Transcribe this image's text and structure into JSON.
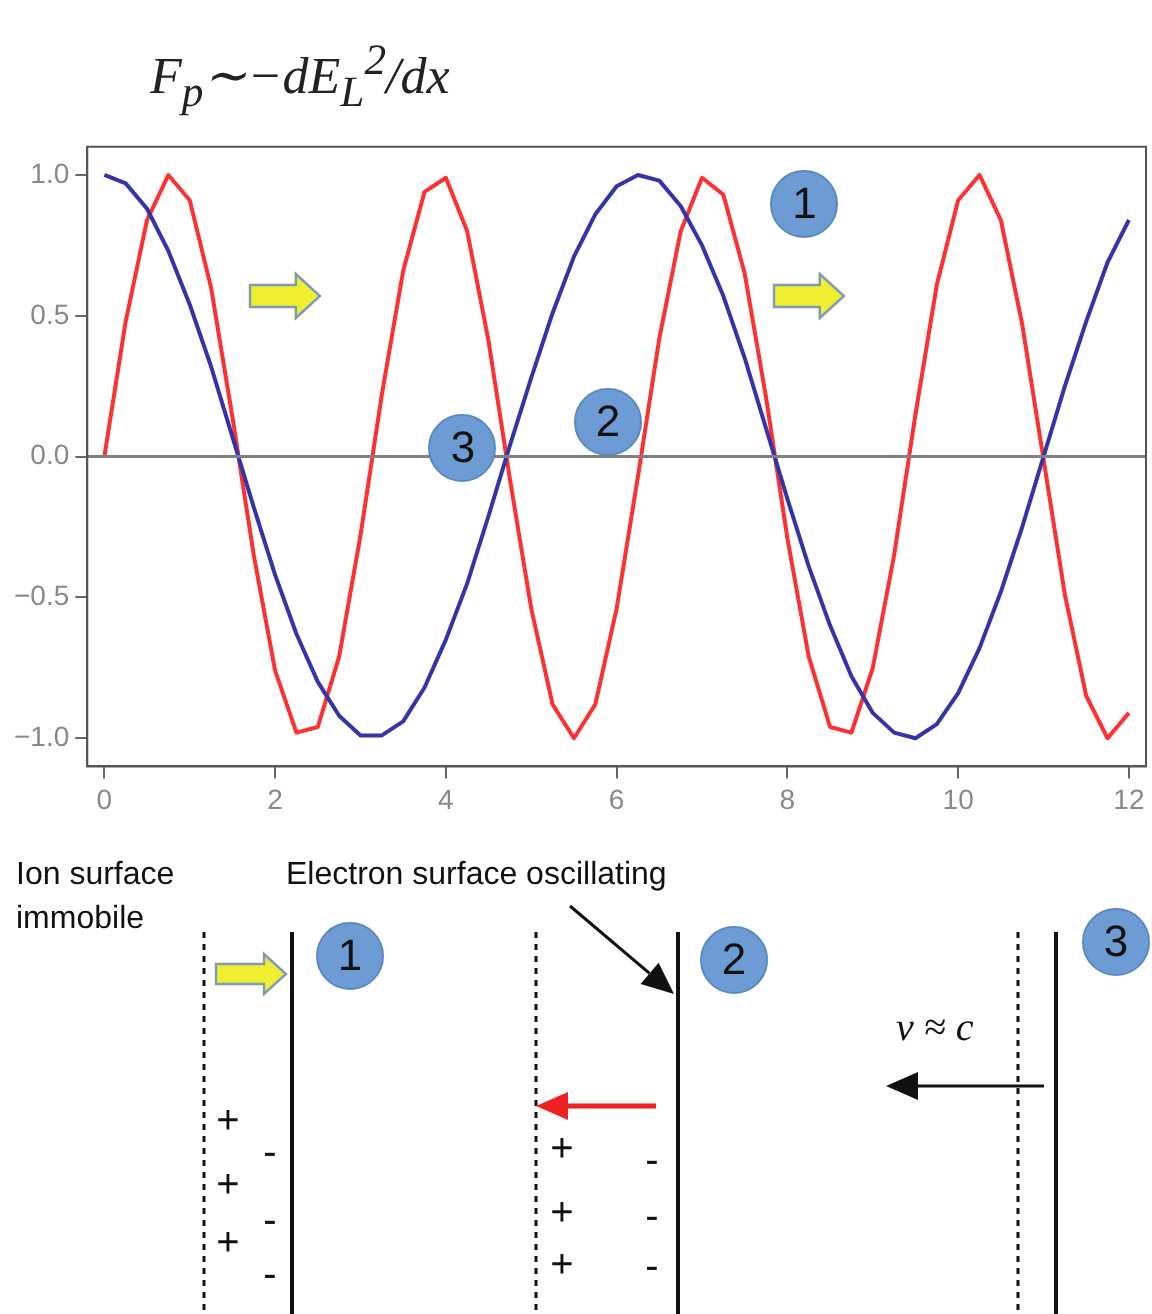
{
  "chart_data": {
    "type": "line",
    "title": "F$_{p}$∼−dE$_{L}$$^{2}$/dx",
    "x": [
      0,
      0.25,
      0.5,
      0.75,
      1,
      1.25,
      1.5,
      1.75,
      2,
      2.25,
      2.5,
      2.75,
      3,
      3.25,
      3.5,
      3.75,
      4,
      4.25,
      4.5,
      4.75,
      5,
      5.25,
      5.5,
      5.75,
      6,
      6.25,
      6.5,
      6.75,
      7,
      7.25,
      7.5,
      7.75,
      8,
      8.25,
      8.5,
      8.75,
      9,
      9.25,
      9.5,
      9.75,
      10,
      10.25,
      10.5,
      10.75,
      11,
      11.25,
      11.5,
      11.75,
      12
    ],
    "series": [
      {
        "color": "#3333aa",
        "values": [
          1.0,
          0.97,
          0.88,
          0.73,
          0.54,
          0.32,
          0.07,
          -0.18,
          -0.42,
          -0.63,
          -0.8,
          -0.92,
          -0.99,
          -0.99,
          -0.94,
          -0.82,
          -0.65,
          -0.45,
          -0.21,
          0.04,
          0.28,
          0.51,
          0.71,
          0.86,
          0.96,
          1.0,
          0.98,
          0.89,
          0.75,
          0.57,
          0.35,
          0.1,
          -0.15,
          -0.39,
          -0.6,
          -0.78,
          -0.91,
          -0.98,
          -1.0,
          -0.95,
          -0.84,
          -0.68,
          -0.48,
          -0.25,
          0.0,
          0.25,
          0.48,
          0.69,
          0.84
        ]
      },
      {
        "color": "#ff3030",
        "values": [
          0.0,
          0.48,
          0.84,
          1.0,
          0.91,
          0.6,
          0.14,
          -0.35,
          -0.76,
          -0.98,
          -0.96,
          -0.71,
          -0.28,
          0.22,
          0.66,
          0.94,
          0.99,
          0.8,
          0.41,
          -0.08,
          -0.54,
          -0.88,
          -1.0,
          -0.88,
          -0.54,
          -0.07,
          0.42,
          0.8,
          0.99,
          0.93,
          0.65,
          0.21,
          -0.29,
          -0.71,
          -0.96,
          -0.98,
          -0.75,
          -0.35,
          0.15,
          0.61,
          0.91,
          1.0,
          0.84,
          0.47,
          -0.01,
          -0.49,
          -0.85,
          -1.0,
          -0.91
        ]
      }
    ],
    "xlim": [
      -0.2,
      12.2
    ],
    "xticks": [
      0,
      2,
      4,
      6,
      8,
      10,
      12
    ],
    "ylim": [
      -1.1,
      1.1
    ],
    "yticks": [
      {
        "value": -1,
        "label": "−1.0"
      },
      {
        "value": -0.5,
        "label": "−0.5"
      },
      {
        "value": 0,
        "label": "0.0"
      },
      {
        "value": 0.5,
        "label": "0.5"
      },
      {
        "value": 1,
        "label": "1.0"
      }
    ],
    "grid": false,
    "legend": false,
    "marker": "none",
    "line_style": "solid",
    "ref_lines": [
      {
        "axis": "y",
        "value": 0,
        "color": "#808080"
      }
    ],
    "annotations": [
      {
        "text": "1",
        "x": 8.2,
        "y": 0.9
      },
      {
        "text": "2",
        "x": 5.9,
        "y": 0.12
      },
      {
        "text": "3",
        "x": 4.2,
        "y": 0.03
      },
      "Ion surface immobile",
      "Electron surface oscillating",
      "1",
      "2",
      "3",
      "v ≈ c",
      "+",
      "+",
      "+",
      "-",
      "-",
      "-",
      "+",
      "+",
      "+",
      "-",
      "-",
      "-"
    ]
  }
}
